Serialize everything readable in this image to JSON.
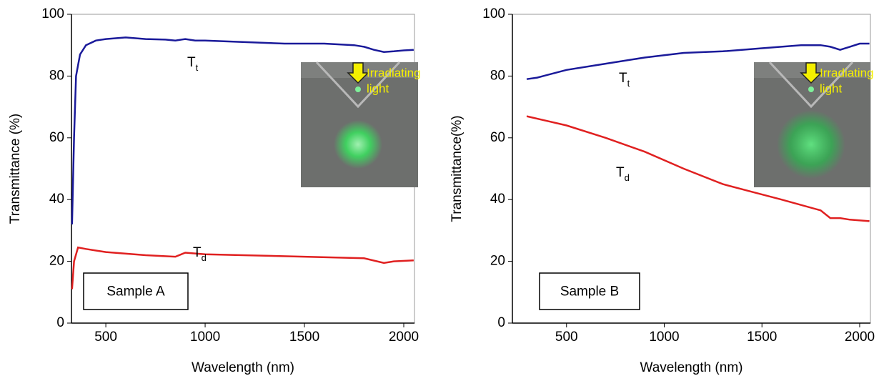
{
  "chart_data": [
    {
      "type": "line",
      "ylabel": "Transmittance (%)",
      "xlabel": "Wavelength (nm)",
      "xlim": [
        327,
        2054
      ],
      "ylim": [
        0,
        100
      ],
      "xticks": [
        500,
        1000,
        1500,
        2000
      ],
      "yticks": [
        0,
        20,
        40,
        60,
        80,
        100
      ],
      "sample_label": "Sample A",
      "inset_label": [
        "Irradiating",
        "light"
      ],
      "series": [
        {
          "name": "T",
          "subscript": "t",
          "color": "#1a1a9a",
          "x": [
            330,
            340,
            350,
            370,
            400,
            450,
            500,
            600,
            700,
            800,
            850,
            900,
            950,
            1000,
            1200,
            1400,
            1600,
            1750,
            1800,
            1850,
            1900,
            1950,
            2000,
            2050
          ],
          "values": [
            32,
            60,
            80,
            87,
            90,
            91.5,
            92,
            92.5,
            92,
            91.8,
            91.5,
            92,
            91.5,
            91.5,
            91,
            90.5,
            90.5,
            90,
            89.5,
            88.5,
            87.8,
            88,
            88.3,
            88.5
          ]
        },
        {
          "name": "T",
          "subscript": "d",
          "color": "#e02020",
          "x": [
            330,
            340,
            360,
            400,
            500,
            700,
            850,
            900,
            1000,
            1500,
            1800,
            1900,
            1950,
            2050
          ],
          "values": [
            11,
            20,
            24.5,
            24,
            23,
            22,
            21.5,
            22.8,
            22.3,
            21.5,
            21,
            19.5,
            20,
            20.3
          ]
        }
      ]
    },
    {
      "type": "line",
      "ylabel": "Transmittance(%)",
      "xlabel": "Wavelength (nm)",
      "xlim": [
        223,
        2055
      ],
      "ylim": [
        0,
        100
      ],
      "xticks": [
        500,
        1000,
        1500,
        2000
      ],
      "yticks": [
        0,
        20,
        40,
        60,
        80,
        100
      ],
      "sample_label": "Sample B",
      "inset_label": [
        "Irradiating",
        "light"
      ],
      "series": [
        {
          "name": "T",
          "subscript": "t",
          "color": "#1a1a9a",
          "x": [
            296,
            350,
            500,
            700,
            900,
            1100,
            1300,
            1500,
            1700,
            1800,
            1850,
            1900,
            1950,
            2000,
            2050
          ],
          "values": [
            79,
            79.5,
            82,
            84,
            86,
            87.5,
            88,
            89,
            90,
            90,
            89.5,
            88.5,
            89.5,
            90.5,
            90.5
          ]
        },
        {
          "name": "T",
          "subscript": "d",
          "color": "#e02020",
          "x": [
            296,
            500,
            700,
            900,
            1100,
            1300,
            1450,
            1600,
            1800,
            1850,
            1900,
            1950,
            2050
          ],
          "values": [
            67,
            64,
            60,
            55.5,
            50,
            45,
            42.5,
            40,
            36.5,
            34,
            34,
            33.5,
            33
          ]
        }
      ]
    }
  ]
}
